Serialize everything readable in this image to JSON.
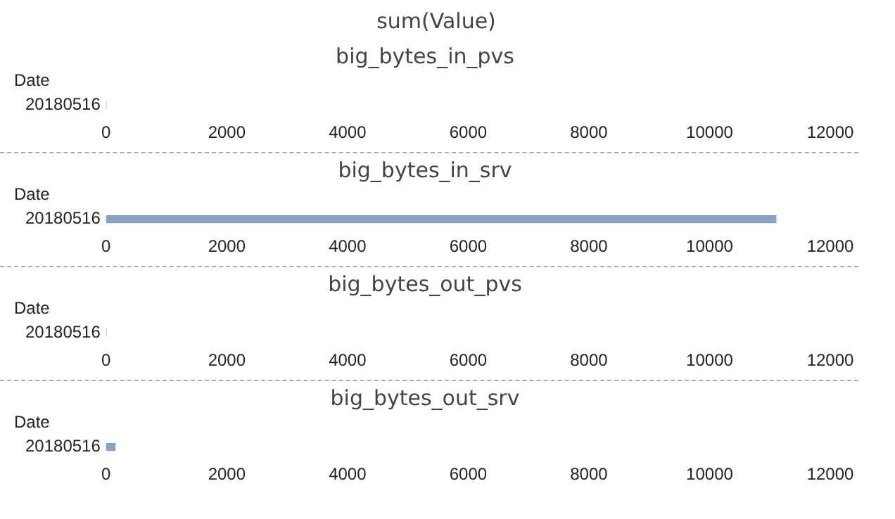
{
  "chart_data": [
    {
      "type": "bar",
      "orientation": "horizontal",
      "title": "big_bytes_in_pvs",
      "annotations": [
        "sum(Value)"
      ],
      "ylabel": "Date",
      "categories": [
        "20180516"
      ],
      "values": [
        0
      ],
      "color": "#86a3c3",
      "xlim": [
        0,
        12000
      ],
      "xticks": [
        0,
        2000,
        4000,
        6000,
        8000,
        10000,
        12000
      ],
      "grid": false,
      "legend": false
    },
    {
      "type": "bar",
      "orientation": "horizontal",
      "title": "big_bytes_in_srv",
      "ylabel": "Date",
      "categories": [
        "20180516"
      ],
      "values": [
        11100
      ],
      "color": "#86a3c3",
      "xlim": [
        0,
        12000
      ],
      "xticks": [
        0,
        2000,
        4000,
        6000,
        8000,
        10000,
        12000
      ],
      "grid": false,
      "legend": false
    },
    {
      "type": "bar",
      "orientation": "horizontal",
      "title": "big_bytes_out_pvs",
      "ylabel": "Date",
      "categories": [
        "20180516"
      ],
      "values": [
        0
      ],
      "color": "#86a3c3",
      "xlim": [
        0,
        12000
      ],
      "xticks": [
        0,
        2000,
        4000,
        6000,
        8000,
        10000,
        12000
      ],
      "grid": false,
      "legend": false
    },
    {
      "type": "bar",
      "orientation": "horizontal",
      "title": "big_bytes_out_srv",
      "ylabel": "Date",
      "categories": [
        "20180516"
      ],
      "values": [
        150
      ],
      "color": "#86a3c3",
      "xlim": [
        0,
        12000
      ],
      "xticks": [
        0,
        2000,
        4000,
        6000,
        8000,
        10000,
        12000
      ],
      "grid": false,
      "legend": false
    }
  ]
}
